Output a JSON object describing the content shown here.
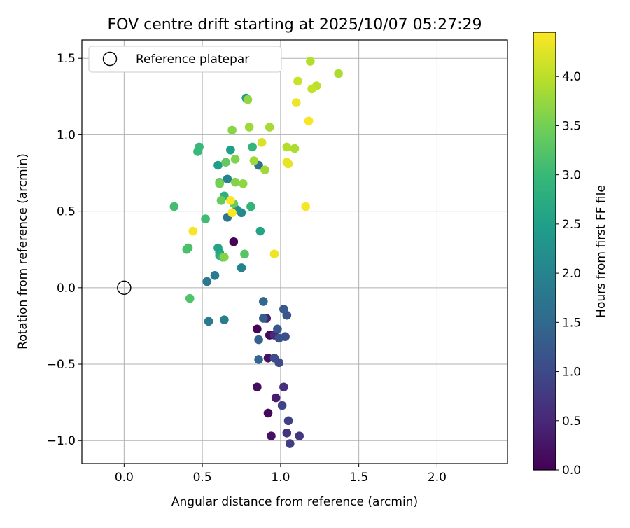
{
  "chart_data": {
    "type": "scatter",
    "title": "FOV centre drift starting at 2025/10/07 05:27:29",
    "xlabel": "Angular distance from reference (arcmin)",
    "ylabel": "Rotation from reference (arcmin)",
    "xlim": [
      -0.27,
      2.45
    ],
    "ylim": [
      -1.15,
      1.62
    ],
    "xticks": [
      0.0,
      0.5,
      1.0,
      1.5,
      2.0
    ],
    "xtick_labels": [
      "0.0",
      "0.5",
      "1.0",
      "1.5",
      "2.0"
    ],
    "yticks": [
      -1.0,
      -0.5,
      0.0,
      0.5,
      1.0,
      1.5
    ],
    "ytick_labels": [
      "−1.0",
      "−0.5",
      "0.0",
      "0.5",
      "1.0",
      "1.5"
    ],
    "grid": true,
    "legend": {
      "label": "Reference platepar",
      "location": "upper-left"
    },
    "reference_point": {
      "x": 0.0,
      "y": 0.0
    },
    "colorbar": {
      "label": "Hours from first FF file",
      "range": [
        0.0,
        4.45
      ],
      "ticks": [
        0.0,
        0.5,
        1.0,
        1.5,
        2.0,
        2.5,
        3.0,
        3.5,
        4.0
      ],
      "tick_labels": [
        "0.0",
        "0.5",
        "1.0",
        "1.5",
        "2.0",
        "2.5",
        "3.0",
        "3.5",
        "4.0"
      ],
      "colormap": [
        "#440154",
        "#482878",
        "#3e4989",
        "#31688e",
        "#26828e",
        "#1f9e89",
        "#35b779",
        "#6ece58",
        "#b5de2b",
        "#fde725"
      ]
    },
    "series": [
      {
        "name": "FOV centre drift",
        "points": [
          {
            "x": 0.7,
            "y": 0.3,
            "t": 0.05
          },
          {
            "x": 0.85,
            "y": -0.27,
            "t": 0.05
          },
          {
            "x": 0.93,
            "y": -0.31,
            "t": 0.1
          },
          {
            "x": 0.92,
            "y": -0.46,
            "t": 0.2
          },
          {
            "x": 0.85,
            "y": -0.65,
            "t": 0.15
          },
          {
            "x": 0.92,
            "y": -0.82,
            "t": 0.1
          },
          {
            "x": 0.94,
            "y": -0.97,
            "t": 0.2
          },
          {
            "x": 0.97,
            "y": -0.72,
            "t": 0.35
          },
          {
            "x": 0.91,
            "y": -0.2,
            "t": 0.4
          },
          {
            "x": 0.96,
            "y": -0.31,
            "t": 0.5
          },
          {
            "x": 1.02,
            "y": -0.65,
            "t": 0.6
          },
          {
            "x": 1.04,
            "y": -0.95,
            "t": 0.65
          },
          {
            "x": 1.12,
            "y": -0.97,
            "t": 0.7
          },
          {
            "x": 1.06,
            "y": -1.02,
            "t": 0.8
          },
          {
            "x": 1.05,
            "y": -0.87,
            "t": 0.85
          },
          {
            "x": 1.01,
            "y": -0.77,
            "t": 0.9
          },
          {
            "x": 0.99,
            "y": -0.49,
            "t": 1.0
          },
          {
            "x": 0.96,
            "y": -0.46,
            "t": 1.05
          },
          {
            "x": 1.03,
            "y": -0.32,
            "t": 1.1
          },
          {
            "x": 0.99,
            "y": -0.33,
            "t": 1.1
          },
          {
            "x": 0.98,
            "y": -0.27,
            "t": 1.2
          },
          {
            "x": 1.04,
            "y": -0.18,
            "t": 1.2
          },
          {
            "x": 1.02,
            "y": -0.14,
            "t": 1.25
          },
          {
            "x": 0.89,
            "y": -0.2,
            "t": 1.3
          },
          {
            "x": 0.86,
            "y": -0.34,
            "t": 1.4
          },
          {
            "x": 0.86,
            "y": -0.47,
            "t": 1.45
          },
          {
            "x": 0.89,
            "y": -0.09,
            "t": 1.5
          },
          {
            "x": 0.86,
            "y": 0.8,
            "t": 1.6
          },
          {
            "x": 0.66,
            "y": 0.46,
            "t": 1.7
          },
          {
            "x": 0.53,
            "y": 0.04,
            "t": 1.8
          },
          {
            "x": 0.58,
            "y": 0.08,
            "t": 1.85
          },
          {
            "x": 0.54,
            "y": -0.22,
            "t": 1.85
          },
          {
            "x": 0.64,
            "y": -0.21,
            "t": 1.9
          },
          {
            "x": 0.75,
            "y": 0.13,
            "t": 2.0
          },
          {
            "x": 0.66,
            "y": 0.71,
            "t": 2.0
          },
          {
            "x": 0.75,
            "y": 0.49,
            "t": 2.1
          },
          {
            "x": 0.72,
            "y": 0.51,
            "t": 2.2
          },
          {
            "x": 0.78,
            "y": 1.24,
            "t": 2.4
          },
          {
            "x": 0.68,
            "y": 0.9,
            "t": 2.5
          },
          {
            "x": 0.6,
            "y": 0.8,
            "t": 2.5
          },
          {
            "x": 0.61,
            "y": 0.23,
            "t": 2.6
          },
          {
            "x": 0.6,
            "y": 0.26,
            "t": 2.6
          },
          {
            "x": 0.61,
            "y": 0.21,
            "t": 2.7
          },
          {
            "x": 0.87,
            "y": 0.37,
            "t": 2.6
          },
          {
            "x": 0.64,
            "y": 0.6,
            "t": 2.8
          },
          {
            "x": 0.81,
            "y": 0.53,
            "t": 2.9
          },
          {
            "x": 0.82,
            "y": 0.92,
            "t": 2.9
          },
          {
            "x": 0.48,
            "y": 0.92,
            "t": 3.0
          },
          {
            "x": 0.47,
            "y": 0.89,
            "t": 3.0
          },
          {
            "x": 0.52,
            "y": 0.45,
            "t": 3.05
          },
          {
            "x": 0.32,
            "y": 0.53,
            "t": 3.1
          },
          {
            "x": 0.63,
            "y": 0.2,
            "t": 3.1
          },
          {
            "x": 0.41,
            "y": 0.26,
            "t": 3.15
          },
          {
            "x": 0.4,
            "y": 0.25,
            "t": 3.15
          },
          {
            "x": 0.42,
            "y": -0.07,
            "t": 3.2
          },
          {
            "x": 0.77,
            "y": 0.22,
            "t": 3.25
          },
          {
            "x": 0.61,
            "y": 0.69,
            "t": 3.3
          },
          {
            "x": 0.65,
            "y": 0.82,
            "t": 3.35
          },
          {
            "x": 0.62,
            "y": 0.57,
            "t": 3.4
          },
          {
            "x": 0.7,
            "y": 0.55,
            "t": 3.4
          },
          {
            "x": 0.61,
            "y": 0.68,
            "t": 3.5
          },
          {
            "x": 0.71,
            "y": 0.69,
            "t": 3.6
          },
          {
            "x": 0.71,
            "y": 0.84,
            "t": 3.6
          },
          {
            "x": 0.64,
            "y": 0.2,
            "t": 3.6
          },
          {
            "x": 0.69,
            "y": 1.03,
            "t": 3.65
          },
          {
            "x": 0.79,
            "y": 1.23,
            "t": 3.7
          },
          {
            "x": 0.76,
            "y": 0.68,
            "t": 3.7
          },
          {
            "x": 0.8,
            "y": 1.05,
            "t": 3.8
          },
          {
            "x": 0.83,
            "y": 0.83,
            "t": 3.8
          },
          {
            "x": 0.9,
            "y": 0.77,
            "t": 3.8
          },
          {
            "x": 0.93,
            "y": 1.05,
            "t": 3.85
          },
          {
            "x": 1.09,
            "y": 0.91,
            "t": 3.9
          },
          {
            "x": 1.04,
            "y": 0.92,
            "t": 3.95
          },
          {
            "x": 1.37,
            "y": 1.4,
            "t": 3.9
          },
          {
            "x": 1.19,
            "y": 1.48,
            "t": 3.95
          },
          {
            "x": 1.23,
            "y": 1.32,
            "t": 4.0
          },
          {
            "x": 1.2,
            "y": 1.3,
            "t": 4.05
          },
          {
            "x": 1.11,
            "y": 1.35,
            "t": 4.1
          },
          {
            "x": 0.88,
            "y": 0.95,
            "t": 4.2
          },
          {
            "x": 1.04,
            "y": 0.82,
            "t": 4.3
          },
          {
            "x": 1.05,
            "y": 0.81,
            "t": 4.3
          },
          {
            "x": 1.1,
            "y": 1.21,
            "t": 4.35
          },
          {
            "x": 1.18,
            "y": 1.09,
            "t": 4.4
          },
          {
            "x": 1.16,
            "y": 0.53,
            "t": 4.4
          },
          {
            "x": 0.96,
            "y": 0.22,
            "t": 4.35
          },
          {
            "x": 0.44,
            "y": 0.37,
            "t": 4.4
          },
          {
            "x": 0.68,
            "y": 0.57,
            "t": 4.45
          },
          {
            "x": 0.69,
            "y": 0.49,
            "t": 4.45
          }
        ]
      }
    ]
  }
}
